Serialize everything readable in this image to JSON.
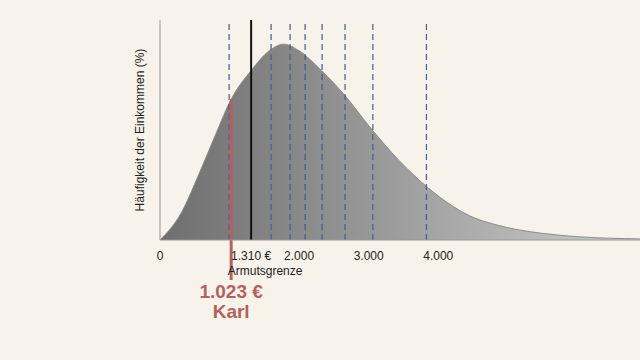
{
  "chart_data": {
    "type": "area",
    "y_label": "Häufigkeit der Einkommen (%)",
    "x": [
      0,
      300,
      560,
      800,
      1023,
      1310,
      1570,
      1780,
      2000,
      2320,
      2650,
      3000,
      3440,
      4000,
      4450,
      4820,
      5500,
      6000,
      6900
    ],
    "values": [
      0,
      12,
      30,
      48,
      64,
      77,
      86,
      89,
      86,
      77,
      66,
      52,
      36,
      20,
      11,
      7,
      3,
      1.5,
      0.5
    ],
    "color": "#8a8a8a",
    "xlim": [
      0,
      6900
    ],
    "ylim": [
      0,
      100
    ],
    "xticks": [
      0,
      {
        "value": 1310,
        "label": "1.310 €"
      },
      {
        "value": 2000,
        "label": "2.000"
      },
      {
        "value": 3000,
        "label": "3.000"
      },
      {
        "value": 4000,
        "label": "4.000"
      }
    ],
    "tick_labels": "x",
    "poverty_line": {
      "value": 1310,
      "label": "Armutsgrenze",
      "color": "#111111"
    },
    "person_line": {
      "value": 1023,
      "label": "1.023 €",
      "name": "Karl",
      "color": "#b5605e"
    },
    "decile_lines": [
      993,
      1597,
      1870,
      2086,
      2330,
      2660,
      3060,
      3830
    ],
    "decile_color": "#4a5a8a"
  }
}
